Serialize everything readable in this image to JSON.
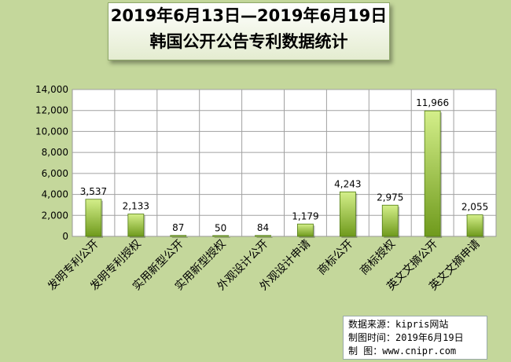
{
  "title": {
    "line1": "2019年6月13日—2019年6月19日",
    "line2": "韩国公开公告专利数据统计"
  },
  "source": {
    "line1": "数据来源：kipris网站",
    "line2": "制图时间：2019年6月19日",
    "line3": "制    图：www.cnipr.com"
  },
  "colors": {
    "bar_top": "#d4ef8a",
    "bar_bottom": "#6f9a1c",
    "background": "#c4d79b",
    "plot": "#ffffff"
  },
  "chart_data": {
    "type": "bar",
    "categories": [
      "发明专利公开",
      "发明专利授权",
      "实用新型公开",
      "实用新型授权",
      "外观设计公开",
      "外观设计申请",
      "商标公开",
      "商标授权",
      "英文文摘公开",
      "英文文摘申请"
    ],
    "values": [
      3537,
      2133,
      87,
      50,
      84,
      1179,
      4243,
      2975,
      11966,
      2055
    ],
    "data_labels": [
      "3,537",
      "2,133",
      "87",
      "50",
      "84",
      "1,179",
      "4,243",
      "2,975",
      "11,966",
      "2,055"
    ],
    "ylim": [
      0,
      14000
    ],
    "yticks": [
      0,
      2000,
      4000,
      6000,
      8000,
      10000,
      12000,
      14000
    ],
    "ytick_labels": [
      "0",
      "2,000",
      "4,000",
      "6,000",
      "8,000",
      "10,000",
      "12,000",
      "14,000"
    ],
    "grid": true,
    "legend": "none"
  }
}
